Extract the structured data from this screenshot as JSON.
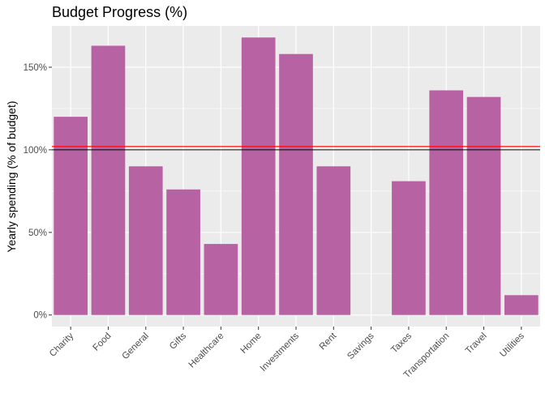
{
  "chart_data": {
    "type": "bar",
    "title": "Budget Progress (%)",
    "xlabel": "",
    "ylabel": "Yearly spending (% of budget)",
    "categories": [
      "Charity",
      "Food",
      "General",
      "Gifts",
      "Healthcare",
      "Home",
      "Investments",
      "Rent",
      "Savings",
      "Taxes",
      "Transportation",
      "Travel",
      "Utilities"
    ],
    "values": [
      120,
      163,
      90,
      76,
      43,
      168,
      158,
      90,
      0,
      81,
      136,
      132,
      12
    ],
    "yticks": [
      0,
      50,
      100,
      150
    ],
    "ytick_labels": [
      "0%",
      "50%",
      "100%",
      "150%"
    ],
    "ylim": [
      -7,
      175
    ],
    "reference_lines": [
      {
        "value": 100,
        "color": "#000000"
      },
      {
        "value": 102,
        "color": "#ff0000"
      }
    ],
    "bar_color": "#b762a3",
    "panel_color": "#ebebeb",
    "grid": true,
    "legend": "none"
  }
}
